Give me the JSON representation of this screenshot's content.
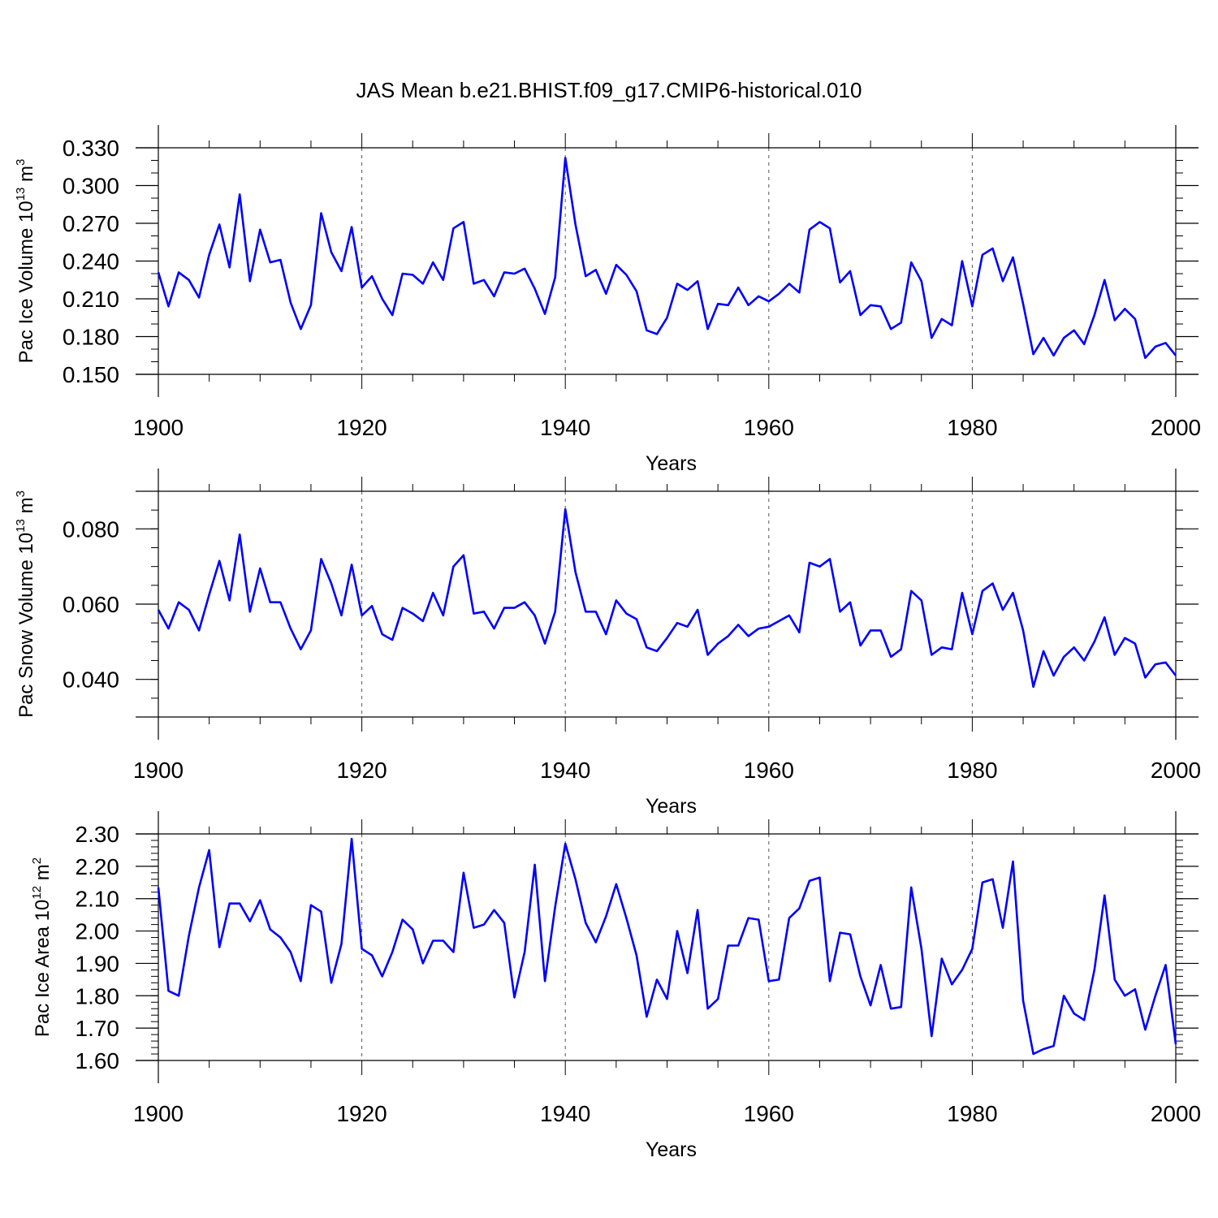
{
  "title": "JAS Mean b.e21.BHIST.f09_g17.CMIP6-historical.010",
  "colors": {
    "series": "#0000ff",
    "axis": "#000000",
    "grid": "#555555"
  },
  "chart_data": [
    {
      "type": "line",
      "id": "ice-volume",
      "xlabel": "Years",
      "ylabel_main": "Pac Ice Volume 10",
      "ylabel_exp": "13",
      "ylabel_unit": " m",
      "ylabel_unit_exp": "3",
      "xlim": [
        1900,
        2000
      ],
      "ylim": [
        0.15,
        0.33
      ],
      "xticks": [
        1900,
        1920,
        1940,
        1960,
        1980,
        2000
      ],
      "xtick_labels": [
        "1900",
        "1920",
        "1940",
        "1960",
        "1980",
        "2000"
      ],
      "yticks": [
        0.15,
        0.18,
        0.21,
        0.24,
        0.27,
        0.3,
        0.33
      ],
      "ytick_labels": [
        "0.150",
        "0.180",
        "0.210",
        "0.240",
        "0.270",
        "0.300",
        "0.330"
      ],
      "grid_x": [
        1920,
        1940,
        1960,
        1980
      ],
      "x_start": 1900,
      "values": [
        0.231,
        0.204,
        0.231,
        0.225,
        0.211,
        0.245,
        0.269,
        0.235,
        0.293,
        0.224,
        0.265,
        0.239,
        0.241,
        0.207,
        0.186,
        0.205,
        0.278,
        0.247,
        0.232,
        0.267,
        0.219,
        0.228,
        0.21,
        0.197,
        0.23,
        0.229,
        0.222,
        0.239,
        0.225,
        0.266,
        0.271,
        0.222,
        0.225,
        0.212,
        0.231,
        0.23,
        0.234,
        0.218,
        0.198,
        0.227,
        0.322,
        0.269,
        0.228,
        0.233,
        0.214,
        0.237,
        0.229,
        0.216,
        0.185,
        0.182,
        0.195,
        0.222,
        0.217,
        0.224,
        0.186,
        0.206,
        0.205,
        0.219,
        0.205,
        0.212,
        0.208,
        0.214,
        0.222,
        0.215,
        0.265,
        0.271,
        0.266,
        0.223,
        0.232,
        0.197,
        0.205,
        0.204,
        0.186,
        0.191,
        0.239,
        0.224,
        0.179,
        0.194,
        0.189,
        0.24,
        0.204,
        0.245,
        0.25,
        0.224,
        0.243,
        0.206,
        0.166,
        0.179,
        0.165,
        0.179,
        0.185,
        0.174,
        0.197,
        0.225,
        0.193,
        0.202,
        0.194,
        0.163,
        0.172,
        0.175,
        0.165
      ]
    },
    {
      "type": "line",
      "id": "snow-volume",
      "xlabel": "Years",
      "ylabel_main": "Pac Snow Volume 10",
      "ylabel_exp": "13",
      "ylabel_unit": " m",
      "ylabel_unit_exp": "3",
      "xlim": [
        1900,
        2000
      ],
      "ylim": [
        0.03,
        0.09
      ],
      "xticks": [
        1900,
        1920,
        1940,
        1960,
        1980,
        2000
      ],
      "xtick_labels": [
        "1900",
        "1920",
        "1940",
        "1960",
        "1980",
        "2000"
      ],
      "yticks": [
        0.04,
        0.06,
        0.08
      ],
      "ytick_labels": [
        "0.040",
        "0.060",
        "0.080"
      ],
      "grid_x": [
        1920,
        1940,
        1960,
        1980
      ],
      "x_start": 1900,
      "values": [
        0.0585,
        0.0535,
        0.0605,
        0.0585,
        0.053,
        0.0625,
        0.0715,
        0.061,
        0.0785,
        0.058,
        0.0695,
        0.0605,
        0.0605,
        0.0535,
        0.048,
        0.053,
        0.072,
        0.0655,
        0.057,
        0.0705,
        0.057,
        0.0595,
        0.052,
        0.0505,
        0.059,
        0.0575,
        0.0555,
        0.063,
        0.057,
        0.07,
        0.073,
        0.0575,
        0.058,
        0.0535,
        0.059,
        0.059,
        0.0605,
        0.057,
        0.0495,
        0.058,
        0.0852,
        0.0685,
        0.058,
        0.058,
        0.052,
        0.061,
        0.0575,
        0.056,
        0.0485,
        0.0475,
        0.051,
        0.055,
        0.054,
        0.0585,
        0.0465,
        0.0495,
        0.0515,
        0.0545,
        0.0515,
        0.0535,
        0.054,
        0.0555,
        0.057,
        0.0525,
        0.071,
        0.07,
        0.072,
        0.058,
        0.0605,
        0.049,
        0.053,
        0.053,
        0.046,
        0.048,
        0.0635,
        0.061,
        0.0465,
        0.0485,
        0.048,
        0.063,
        0.052,
        0.0635,
        0.0655,
        0.0585,
        0.063,
        0.053,
        0.038,
        0.0475,
        0.041,
        0.046,
        0.0485,
        0.045,
        0.05,
        0.0565,
        0.0465,
        0.051,
        0.0495,
        0.0405,
        0.044,
        0.0445,
        0.041
      ]
    },
    {
      "type": "line",
      "id": "ice-area",
      "xlabel": "Years",
      "ylabel_main": "Pac Ice Area 10",
      "ylabel_exp": "12",
      "ylabel_unit": " m",
      "ylabel_unit_exp": "2",
      "xlim": [
        1900,
        2000
      ],
      "ylim": [
        1.6,
        2.3
      ],
      "xticks": [
        1900,
        1920,
        1940,
        1960,
        1980,
        2000
      ],
      "xtick_labels": [
        "1900",
        "1920",
        "1940",
        "1960",
        "1980",
        "2000"
      ],
      "yticks": [
        1.6,
        1.7,
        1.8,
        1.9,
        2.0,
        2.1,
        2.2,
        2.3
      ],
      "ytick_labels": [
        "1.60",
        "1.70",
        "1.80",
        "1.90",
        "2.00",
        "2.10",
        "2.20",
        "2.30"
      ],
      "grid_x": [
        1920,
        1940,
        1960,
        1980
      ],
      "x_start": 1900,
      "values": [
        2.135,
        1.815,
        1.8,
        1.985,
        2.135,
        2.25,
        1.95,
        2.085,
        2.085,
        2.03,
        2.095,
        2.005,
        1.98,
        1.935,
        1.845,
        2.08,
        2.06,
        1.84,
        1.96,
        2.285,
        1.945,
        1.925,
        1.86,
        1.935,
        2.035,
        2.005,
        1.9,
        1.97,
        1.97,
        1.935,
        2.18,
        2.01,
        2.02,
        2.065,
        2.025,
        1.795,
        1.935,
        2.205,
        1.845,
        2.075,
        2.27,
        2.16,
        2.025,
        1.965,
        2.045,
        2.145,
        2.04,
        1.925,
        1.735,
        1.85,
        1.79,
        2.0,
        1.87,
        2.065,
        1.76,
        1.79,
        1.955,
        1.955,
        2.04,
        2.035,
        1.845,
        1.85,
        2.04,
        2.07,
        2.155,
        2.165,
        1.845,
        1.995,
        1.99,
        1.86,
        1.77,
        1.895,
        1.76,
        1.765,
        2.135,
        1.945,
        1.675,
        1.915,
        1.835,
        1.88,
        1.945,
        2.15,
        2.16,
        2.01,
        2.215,
        1.785,
        1.62,
        1.635,
        1.645,
        1.8,
        1.745,
        1.725,
        1.88,
        2.11,
        1.85,
        1.8,
        1.82,
        1.695,
        1.8,
        1.895,
        1.65
      ]
    }
  ]
}
